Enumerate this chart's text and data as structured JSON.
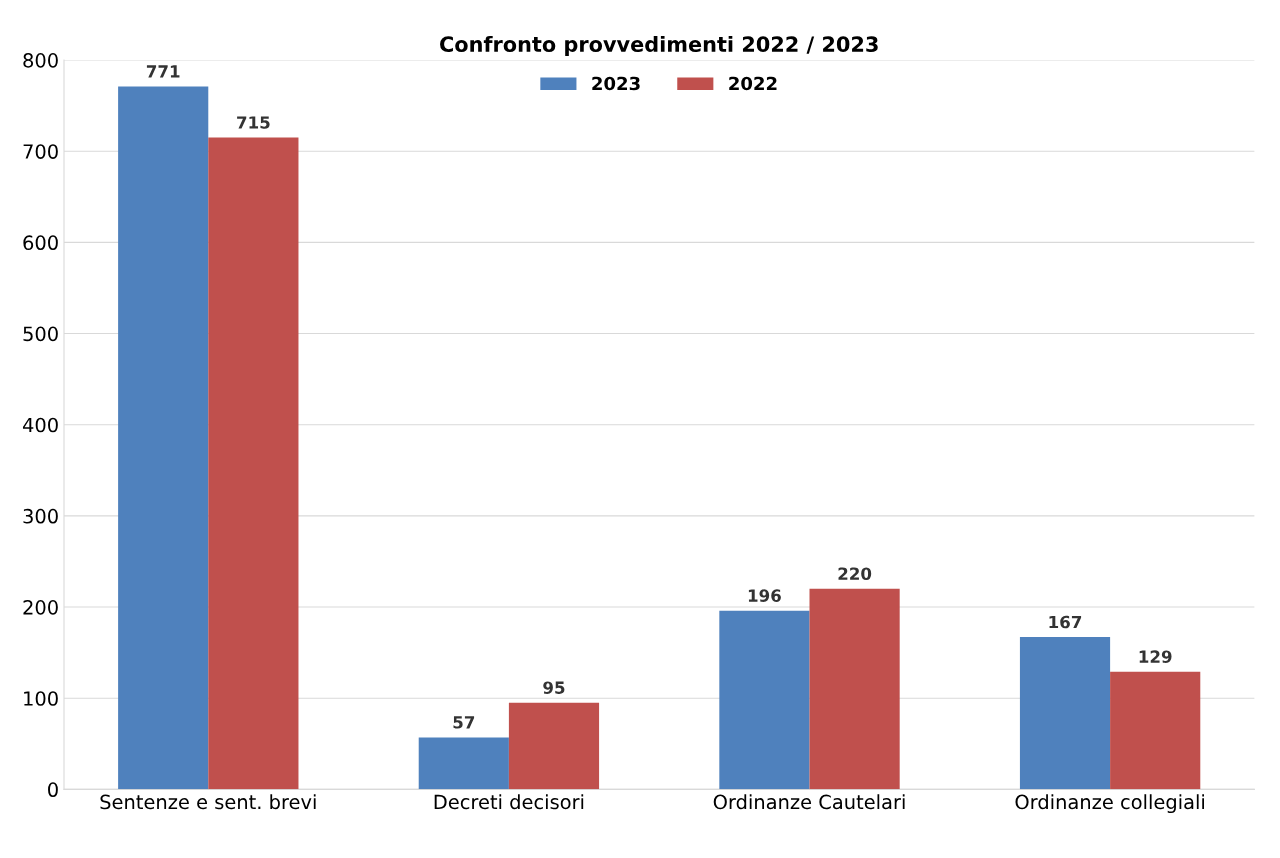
{
  "chart_data": {
    "type": "bar",
    "title": "Confronto provvedimenti 2022 / 2023",
    "categories": [
      "Sentenze e sent. brevi",
      "Decreti decisori",
      "Ordinanze Cautelari",
      "Ordinanze collegiali"
    ],
    "series": [
      {
        "name": "2023",
        "color": "#4f81bd",
        "values": [
          771,
          57,
          196,
          167
        ]
      },
      {
        "name": "2022",
        "color": "#c0504d",
        "values": [
          715,
          95,
          220,
          129
        ]
      }
    ],
    "ylim": [
      0,
      800
    ],
    "yticks": [
      0,
      100,
      200,
      300,
      400,
      500,
      600,
      700,
      800
    ],
    "grid": "y",
    "legend": "top",
    "data_labels": true
  }
}
